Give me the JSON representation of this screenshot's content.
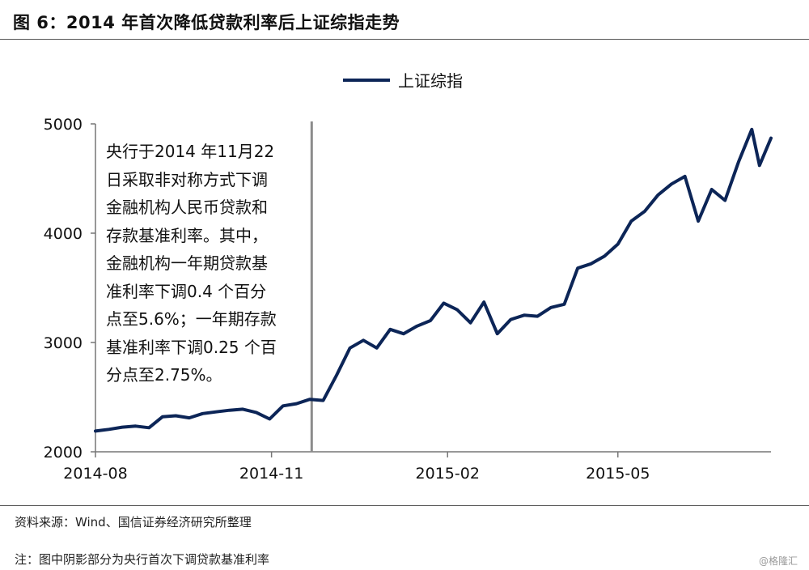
{
  "figure": {
    "title": "图 6：2014 年首次降低贷款利率后上证综指走势"
  },
  "chart_data": {
    "type": "line",
    "series": [
      {
        "name": "上证综指",
        "color": "#0c2557",
        "points": [
          [
            "2014-08-01",
            2190
          ],
          [
            "2014-08-08",
            2205
          ],
          [
            "2014-08-15",
            2225
          ],
          [
            "2014-08-22",
            2235
          ],
          [
            "2014-08-29",
            2220
          ],
          [
            "2014-09-05",
            2320
          ],
          [
            "2014-09-12",
            2330
          ],
          [
            "2014-09-19",
            2310
          ],
          [
            "2014-09-26",
            2350
          ],
          [
            "2014-10-03",
            2365
          ],
          [
            "2014-10-10",
            2380
          ],
          [
            "2014-10-17",
            2390
          ],
          [
            "2014-10-24",
            2360
          ],
          [
            "2014-10-31",
            2300
          ],
          [
            "2014-11-07",
            2420
          ],
          [
            "2014-11-14",
            2440
          ],
          [
            "2014-11-21",
            2480
          ],
          [
            "2014-11-28",
            2470
          ],
          [
            "2014-12-05",
            2700
          ],
          [
            "2014-12-12",
            2950
          ],
          [
            "2014-12-19",
            3020
          ],
          [
            "2014-12-26",
            2950
          ],
          [
            "2015-01-02",
            3120
          ],
          [
            "2015-01-09",
            3080
          ],
          [
            "2015-01-16",
            3150
          ],
          [
            "2015-01-23",
            3200
          ],
          [
            "2015-01-30",
            3360
          ],
          [
            "2015-02-06",
            3300
          ],
          [
            "2015-02-13",
            3180
          ],
          [
            "2015-02-20",
            3370
          ],
          [
            "2015-02-27",
            3080
          ],
          [
            "2015-03-06",
            3210
          ],
          [
            "2015-03-13",
            3250
          ],
          [
            "2015-03-20",
            3240
          ],
          [
            "2015-03-27",
            3320
          ],
          [
            "2015-04-03",
            3350
          ],
          [
            "2015-04-10",
            3680
          ],
          [
            "2015-04-17",
            3720
          ],
          [
            "2015-04-24",
            3790
          ],
          [
            "2015-05-01",
            3900
          ],
          [
            "2015-05-08",
            4110
          ],
          [
            "2015-05-15",
            4200
          ],
          [
            "2015-05-22",
            4350
          ],
          [
            "2015-05-29",
            4450
          ],
          [
            "2015-06-05",
            4520
          ],
          [
            "2015-06-12",
            4110
          ],
          [
            "2015-06-19",
            4400
          ],
          [
            "2015-06-26",
            4300
          ],
          [
            "2015-07-03",
            4650
          ],
          [
            "2015-07-10",
            4950
          ],
          [
            "2015-07-14",
            4620
          ],
          [
            "2015-07-20",
            4870
          ]
        ]
      }
    ],
    "x_axis": {
      "ticks": [
        "2014-08",
        "2014-11",
        "2015-02",
        "2015-05"
      ],
      "range": [
        "2014-08-01",
        "2015-07-20"
      ]
    },
    "y_axis": {
      "ticks": [
        2000,
        3000,
        4000,
        5000
      ],
      "ylim": [
        2000,
        5000
      ]
    },
    "marker": {
      "date": "2014-11-22"
    },
    "grid": false,
    "legend_position": "top-center"
  },
  "legend": {
    "label": "上证综指"
  },
  "annotation": {
    "text": "央行于2014 年11月22\n日采取非对称方式下调\n金融机构人民币贷款和\n存款基准利率。其中，\n金融机构一年期贷款基\n准利率下调0.4 个百分\n点至5.6%；一年期存款\n基准利率下调0.25 个百\n分点至2.75%。"
  },
  "footer": {
    "source": "资料来源：Wind、国信证券经济研究所整理",
    "note": "注：图中阴影部分为央行首次下调贷款基准利率",
    "watermark": "@格隆汇"
  }
}
